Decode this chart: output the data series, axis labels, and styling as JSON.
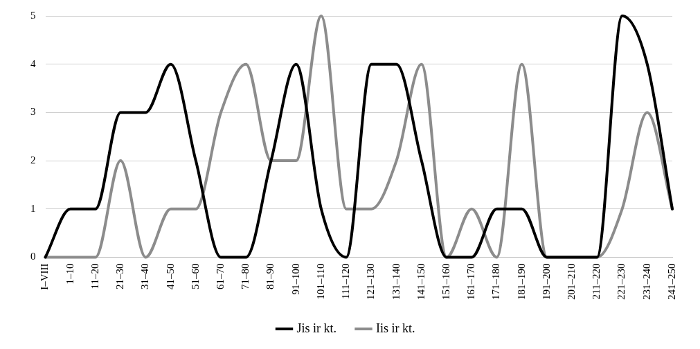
{
  "chart_data": {
    "type": "line",
    "categories": [
      "I–VIII",
      "1–10",
      "11–20",
      "21–30",
      "31–40",
      "41–50",
      "51–60",
      "61–70",
      "71–80",
      "81–90",
      "91–100",
      "101–110",
      "111–120",
      "121–130",
      "131–140",
      "141–150",
      "151–160",
      "161–170",
      "171–180",
      "181–190",
      "191–200",
      "201–210",
      "211–220",
      "221–230",
      "231–240",
      "241–250"
    ],
    "series": [
      {
        "name": "Jis ir kt.",
        "color": "#000000",
        "values": [
          0,
          1,
          1,
          3,
          3,
          4,
          2,
          0,
          0,
          2,
          4,
          1,
          0,
          4,
          4,
          2,
          0,
          0,
          1,
          1,
          0,
          0,
          0,
          5,
          4,
          1
        ]
      },
      {
        "name": "Iis ir kt.",
        "color": "#8c8c8c",
        "values": [
          0,
          0,
          0,
          2,
          0,
          1,
          1,
          3,
          4,
          2,
          2,
          5,
          1,
          1,
          2,
          4,
          0,
          1,
          0,
          4,
          0,
          0,
          0,
          1,
          3,
          1
        ]
      }
    ],
    "ylim": [
      0,
      5
    ],
    "yticks": [
      0,
      1,
      2,
      3,
      4,
      5
    ],
    "grid": "y",
    "legend": "bottom",
    "marker": "none",
    "line_style": "solid"
  }
}
